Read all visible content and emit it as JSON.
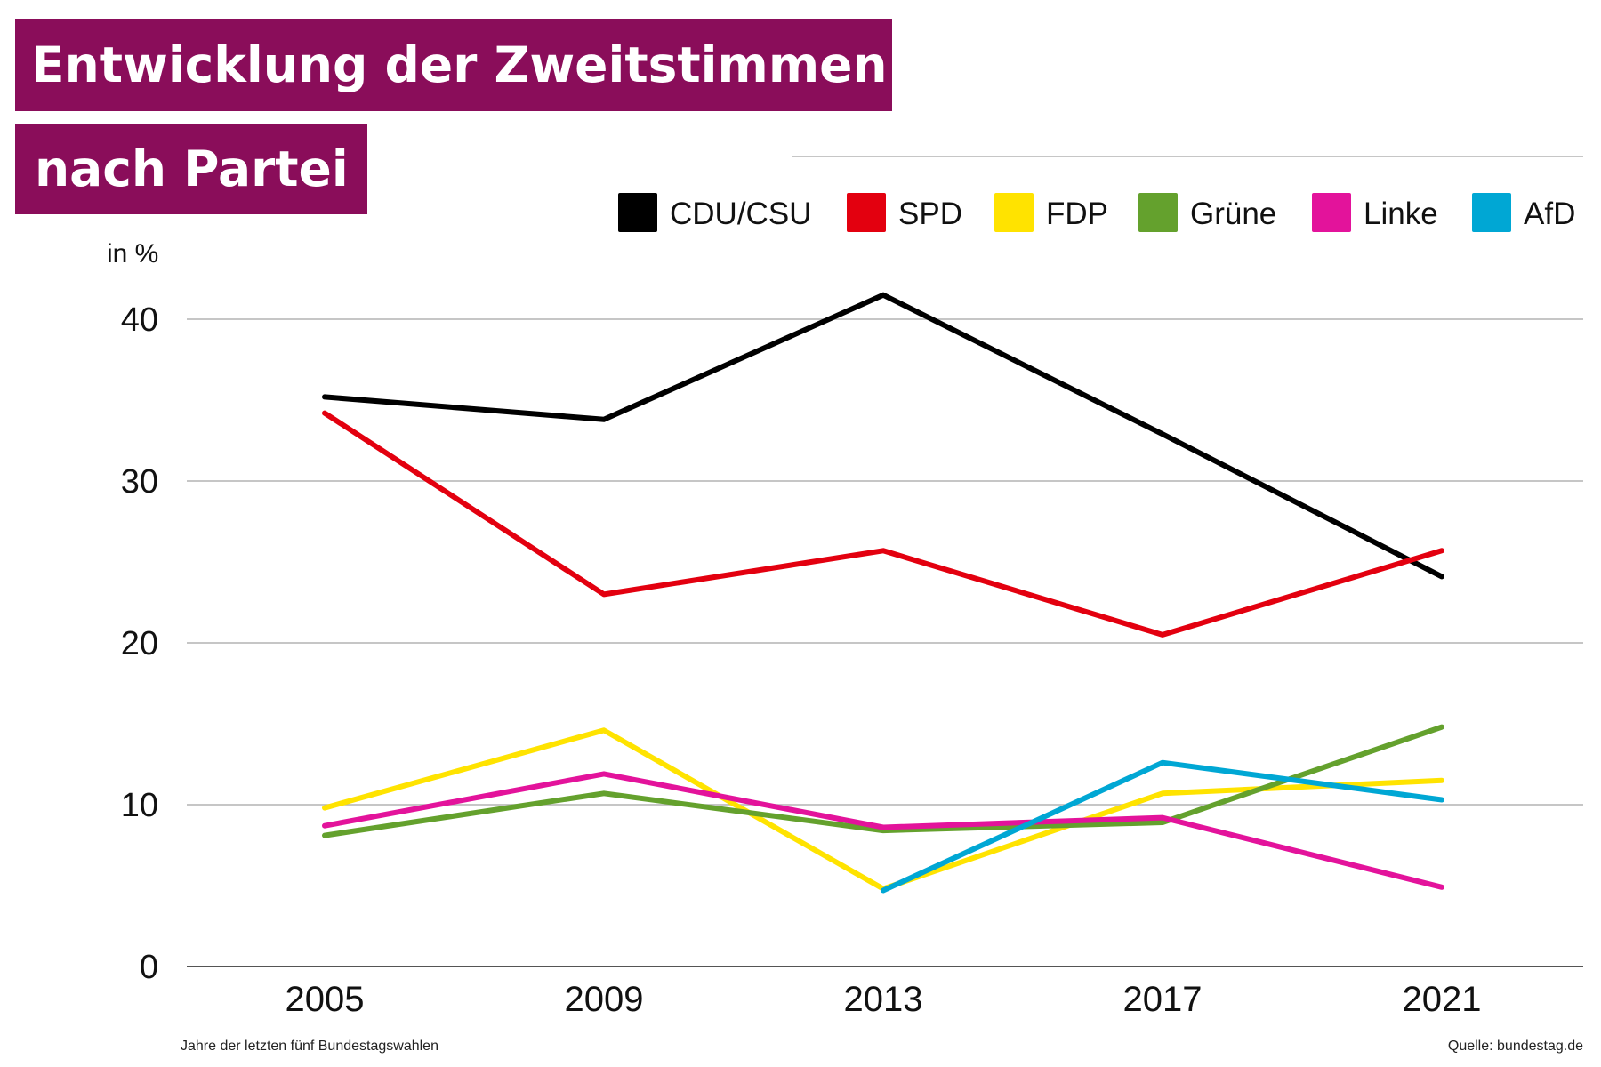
{
  "title_line1": "Entwicklung der Zweitstimmen",
  "title_line2": "nach Partei",
  "footnote": "Jahre der letzten fünf Bundestagswahlen",
  "source": "Quelle: bundestag.de",
  "chart_data": {
    "type": "line",
    "ylabel": "in %",
    "ylim": [
      0,
      45
    ],
    "yticks": [
      0,
      10,
      20,
      30,
      40
    ],
    "categories": [
      "2005",
      "2009",
      "2013",
      "2017",
      "2021"
    ],
    "grid": true,
    "legend_position": "top-right",
    "series": [
      {
        "name": "CDU/CSU",
        "color": "#000000",
        "values": [
          35.2,
          33.8,
          41.5,
          32.9,
          24.1
        ]
      },
      {
        "name": "SPD",
        "color": "#e3000f",
        "values": [
          34.2,
          23.0,
          25.7,
          20.5,
          25.7
        ]
      },
      {
        "name": "FDP",
        "color": "#ffe300",
        "values": [
          9.8,
          14.6,
          4.8,
          10.7,
          11.5
        ]
      },
      {
        "name": "Grüne",
        "color": "#64a12d",
        "values": [
          8.1,
          10.7,
          8.4,
          8.9,
          14.8
        ]
      },
      {
        "name": "Linke",
        "color": "#e3139b",
        "values": [
          8.7,
          11.9,
          8.6,
          9.2,
          4.9
        ]
      },
      {
        "name": "AfD",
        "color": "#00a7d4",
        "values": [
          null,
          null,
          4.7,
          12.6,
          10.3
        ]
      }
    ]
  }
}
